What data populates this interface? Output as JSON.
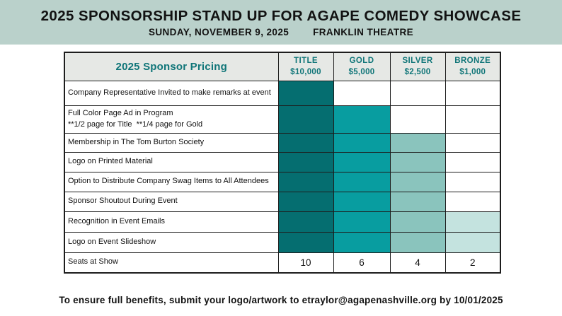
{
  "banner": {
    "title": "2025 SPONSORSHIP STAND UP FOR AGAPE COMEDY SHOWCASE",
    "date": "SUNDAY, NOVEMBER 9, 2025",
    "venue": "FRANKLIN THEATRE",
    "bg_color": "#bad1cb"
  },
  "table": {
    "pricing_header": "2025 Sponsor Pricing",
    "tiers": [
      {
        "name": "TITLE",
        "price": "$10,000"
      },
      {
        "name": "GOLD",
        "price": "$5,000"
      },
      {
        "name": "SILVER",
        "price": "$2,500"
      },
      {
        "name": "BRONZE",
        "price": "$1,000"
      }
    ],
    "accent_text_color": "#0f7578",
    "cell_colors": {
      "dark": "#056e70",
      "medium": "#089da0",
      "light": "#8ac4bd",
      "lightest": "#c4e3df",
      "none": "#ffffff"
    },
    "rows": [
      {
        "benefit": "Company Representative Invited to make remarks at event",
        "fills": [
          "dark",
          "none",
          "none",
          "none"
        ]
      },
      {
        "benefit": "Full Color Page Ad in Program",
        "note": "**1/2 page for Title  **1/4 page for Gold",
        "fills": [
          "dark",
          "medium",
          "none",
          "none"
        ]
      },
      {
        "benefit": "Membership in The Tom Burton Society",
        "fills": [
          "dark",
          "medium",
          "light",
          "none"
        ]
      },
      {
        "benefit": "Logo on Printed Material",
        "fills": [
          "dark",
          "medium",
          "light",
          "none"
        ]
      },
      {
        "benefit": "Option to Distribute Company Swag Items to All Attendees",
        "fills": [
          "dark",
          "medium",
          "light",
          "none"
        ]
      },
      {
        "benefit": "Sponsor Shoutout During Event",
        "fills": [
          "dark",
          "medium",
          "light",
          "none"
        ]
      },
      {
        "benefit": "Recognition in Event Emails",
        "fills": [
          "dark",
          "medium",
          "light",
          "lightest"
        ]
      },
      {
        "benefit": "Logo on Event Slideshow",
        "fills": [
          "dark",
          "medium",
          "light",
          "lightest"
        ]
      },
      {
        "benefit": "Seats at Show",
        "values": [
          "10",
          "6",
          "4",
          "2"
        ]
      }
    ]
  },
  "footer": {
    "text": "To ensure full benefits, submit your logo/artwork to etraylor@agapenashville.org by 10/01/2025"
  }
}
